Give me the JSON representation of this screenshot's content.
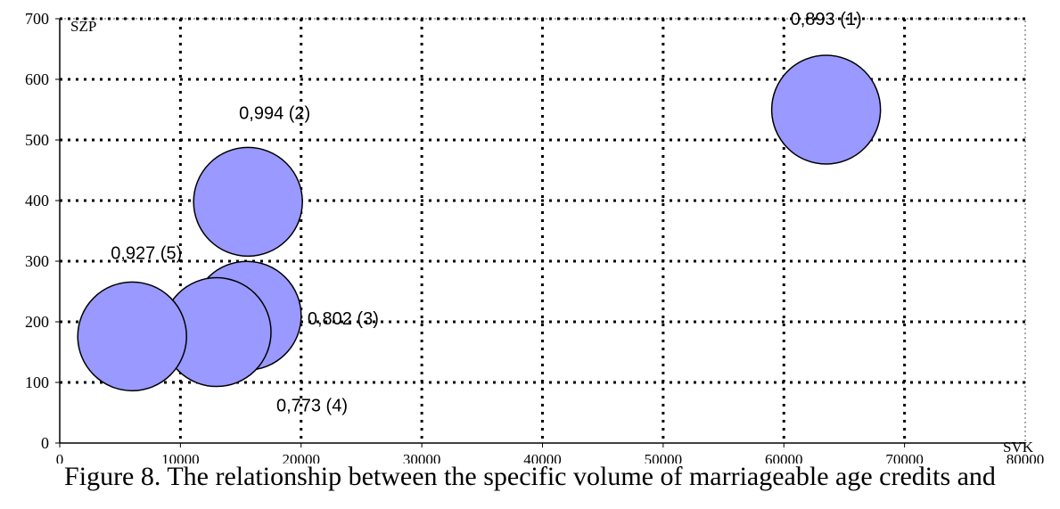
{
  "chart_data": {
    "type": "scatter",
    "title": "",
    "xlabel": "SVK",
    "ylabel": "SZP",
    "xlim": [
      0,
      80000
    ],
    "ylim": [
      0,
      700
    ],
    "x_ticks": [
      "0",
      "10000",
      "20000",
      "30000",
      "40000",
      "50000",
      "60000",
      "70000",
      "80000"
    ],
    "y_ticks": [
      "0",
      "100",
      "200",
      "300",
      "400",
      "500",
      "600",
      "700"
    ],
    "grid": true,
    "grid_style": "dotted",
    "bubble_color": "#9999ff",
    "points": [
      {
        "x": 63500,
        "y": 550,
        "label": "0,893 (1)"
      },
      {
        "x": 15600,
        "y": 398,
        "label": "0,994 (2)"
      },
      {
        "x": 15500,
        "y": 210,
        "label": "0,802 (3)"
      },
      {
        "x": 13000,
        "y": 183,
        "label": "0,773 (4)"
      },
      {
        "x": 6000,
        "y": 176,
        "label": "0,927 (5)"
      }
    ]
  },
  "caption": "Figure 8. The relationship between the specific volume of marriageable age credits and"
}
